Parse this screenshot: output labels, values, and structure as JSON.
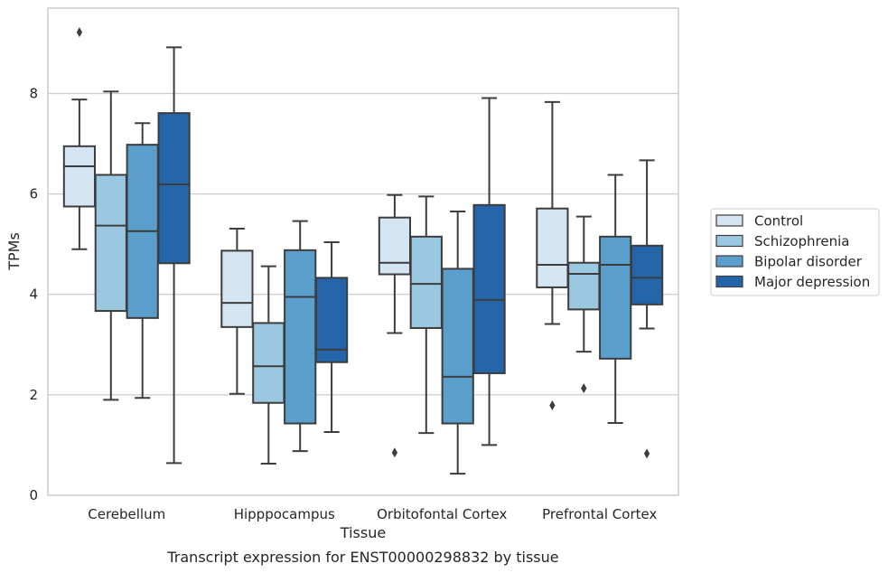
{
  "chart_data": {
    "type": "boxplot",
    "title": "",
    "caption": "Transcript expression for ENST00000298832 by tissue",
    "xlabel": "Tissue",
    "ylabel": "TPMs",
    "ylim": [
      0,
      9.7
    ],
    "yticks": [
      0,
      2,
      4,
      6,
      8
    ],
    "grid": "horizontal",
    "legend_position": "right",
    "categories": [
      "Cerebellum",
      "Hipppocampus",
      "Orbitofontal Cortex",
      "Prefrontal Cortex"
    ],
    "series": [
      {
        "name": "Control",
        "color": "#d3e4f3",
        "boxes": [
          {
            "whisker_low": 4.9,
            "q1": 5.75,
            "median": 6.55,
            "q3": 6.95,
            "whisker_high": 7.88,
            "outliers": [
              9.22
            ]
          },
          {
            "whisker_low": 2.02,
            "q1": 3.35,
            "median": 3.83,
            "q3": 4.87,
            "whisker_high": 5.31,
            "outliers": []
          },
          {
            "whisker_low": 3.23,
            "q1": 4.4,
            "median": 4.63,
            "q3": 5.53,
            "whisker_high": 5.98,
            "outliers": [
              0.85
            ]
          },
          {
            "whisker_low": 3.41,
            "q1": 4.14,
            "median": 4.59,
            "q3": 5.71,
            "whisker_high": 7.83,
            "outliers": [
              1.79
            ]
          }
        ]
      },
      {
        "name": "Schizophrenia",
        "color": "#9ac8e0",
        "boxes": [
          {
            "whisker_low": 1.9,
            "q1": 3.67,
            "median": 5.37,
            "q3": 6.38,
            "whisker_high": 8.04,
            "outliers": []
          },
          {
            "whisker_low": 0.63,
            "q1": 1.84,
            "median": 2.57,
            "q3": 3.43,
            "whisker_high": 4.56,
            "outliers": []
          },
          {
            "whisker_low": 1.24,
            "q1": 3.33,
            "median": 4.21,
            "q3": 5.15,
            "whisker_high": 5.95,
            "outliers": []
          },
          {
            "whisker_low": 2.86,
            "q1": 3.7,
            "median": 4.41,
            "q3": 4.63,
            "whisker_high": 5.55,
            "outliers": [
              2.13
            ]
          }
        ]
      },
      {
        "name": "Bipolar disorder",
        "color": "#5a9ecc",
        "boxes": [
          {
            "whisker_low": 1.94,
            "q1": 3.53,
            "median": 5.26,
            "q3": 6.98,
            "whisker_high": 7.41,
            "outliers": []
          },
          {
            "whisker_low": 0.88,
            "q1": 1.43,
            "median": 3.95,
            "q3": 4.88,
            "whisker_high": 5.46,
            "outliers": []
          },
          {
            "whisker_low": 0.43,
            "q1": 1.43,
            "median": 2.36,
            "q3": 4.51,
            "whisker_high": 5.65,
            "outliers": []
          },
          {
            "whisker_low": 1.44,
            "q1": 2.72,
            "median": 4.59,
            "q3": 5.15,
            "whisker_high": 6.38,
            "outliers": []
          }
        ]
      },
      {
        "name": "Major depression",
        "color": "#2464a8",
        "boxes": [
          {
            "whisker_low": 0.64,
            "q1": 4.62,
            "median": 6.19,
            "q3": 7.61,
            "whisker_high": 8.92,
            "outliers": []
          },
          {
            "whisker_low": 1.26,
            "q1": 2.65,
            "median": 2.9,
            "q3": 4.33,
            "whisker_high": 5.04,
            "outliers": []
          },
          {
            "whisker_low": 1.0,
            "q1": 2.43,
            "median": 3.89,
            "q3": 5.78,
            "whisker_high": 7.91,
            "outliers": []
          },
          {
            "whisker_low": 3.32,
            "q1": 3.8,
            "median": 4.33,
            "q3": 4.97,
            "whisker_high": 6.67,
            "outliers": [
              0.83
            ]
          }
        ]
      }
    ]
  }
}
